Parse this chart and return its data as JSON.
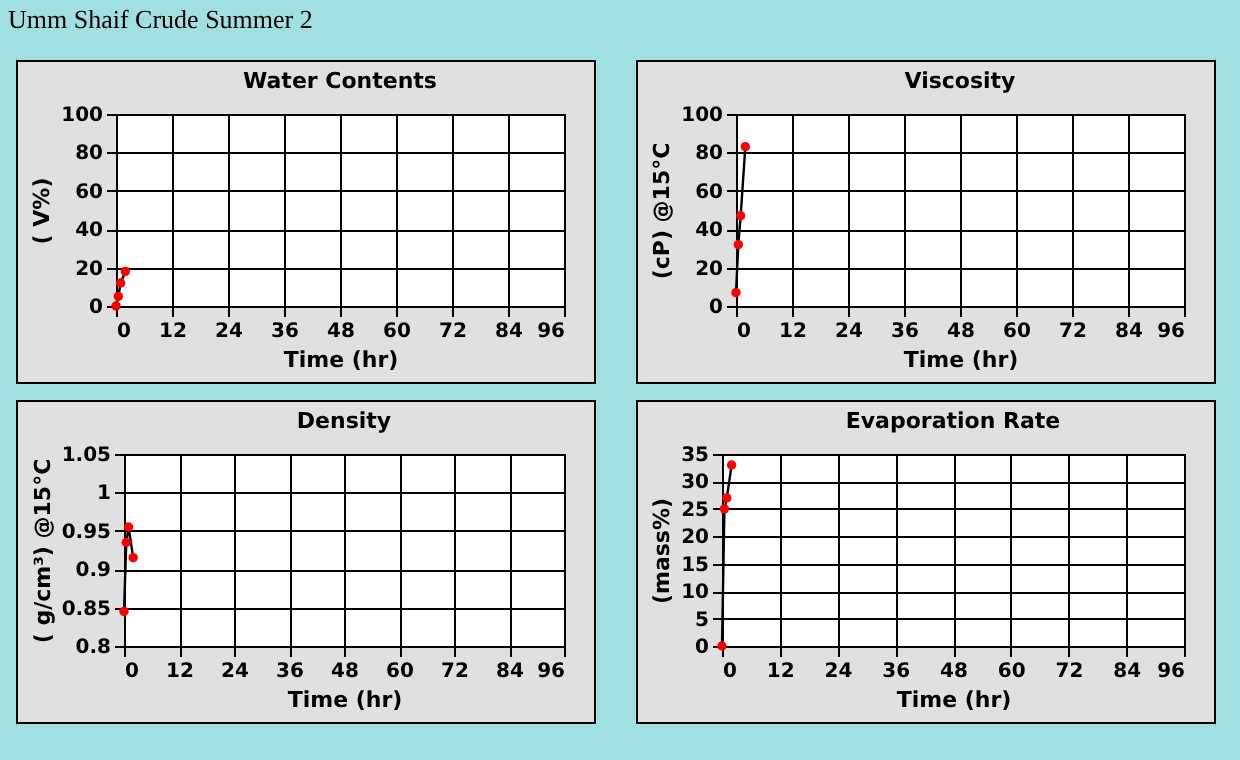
{
  "chart_data": [
    {
      "type": "line",
      "title": "Water Contents",
      "xlabel": "Time (hr)",
      "ylabel": "( V%)",
      "annotations": [
        "Umm Shaif Crude Summer 2"
      ],
      "x": [
        0,
        0.5,
        1,
        2
      ],
      "series": [
        {
          "color": "#ff0000",
          "values": [
            0,
            5,
            12,
            18
          ]
        }
      ],
      "xlim": [
        0,
        96
      ],
      "xticks": [
        0,
        12,
        24,
        36,
        48,
        60,
        72,
        84,
        96
      ],
      "ylim": [
        0,
        100
      ],
      "yticks": [
        0,
        20,
        40,
        60,
        80,
        100
      ],
      "grid": true,
      "marker": "circle"
    },
    {
      "type": "line",
      "title": "Viscosity",
      "xlabel": "Time (hr)",
      "ylabel": "(cP) @15°C",
      "x": [
        0,
        0.5,
        1,
        2
      ],
      "series": [
        {
          "color": "#ff0000",
          "values": [
            7,
            32,
            47,
            83
          ]
        }
      ],
      "xlim": [
        0,
        96
      ],
      "xticks": [
        0,
        12,
        24,
        36,
        48,
        60,
        72,
        84,
        96
      ],
      "ylim": [
        0,
        100
      ],
      "yticks": [
        0,
        20,
        40,
        60,
        80,
        100
      ],
      "grid": true,
      "marker": "circle"
    },
    {
      "type": "line",
      "title": "Density",
      "xlabel": "Time (hr)",
      "ylabel": "( g/cm³) @15°C",
      "x": [
        0,
        0.5,
        1,
        2
      ],
      "series": [
        {
          "color": "#ff0000",
          "values": [
            0.845,
            0.935,
            0.955,
            0.915
          ]
        }
      ],
      "xlim": [
        0,
        96
      ],
      "xticks": [
        0,
        12,
        24,
        36,
        48,
        60,
        72,
        84,
        96
      ],
      "ylim": [
        0.8,
        1.05
      ],
      "yticks": [
        0.8,
        0.85,
        0.9,
        0.95,
        1,
        1.05
      ],
      "grid": true,
      "marker": "circle"
    },
    {
      "type": "line",
      "title": "Evaporation Rate",
      "xlabel": "Time (hr)",
      "ylabel": "(mass%)",
      "x": [
        0,
        0.5,
        1,
        2
      ],
      "series": [
        {
          "color": "#ff0000",
          "values": [
            0,
            25,
            27,
            33
          ]
        }
      ],
      "xlim": [
        0,
        96
      ],
      "xticks": [
        0,
        12,
        24,
        36,
        48,
        60,
        72,
        84,
        96
      ],
      "ylim": [
        0,
        35
      ],
      "yticks": [
        0,
        5,
        10,
        15,
        20,
        25,
        30,
        35
      ],
      "grid": true,
      "marker": "circle"
    }
  ]
}
